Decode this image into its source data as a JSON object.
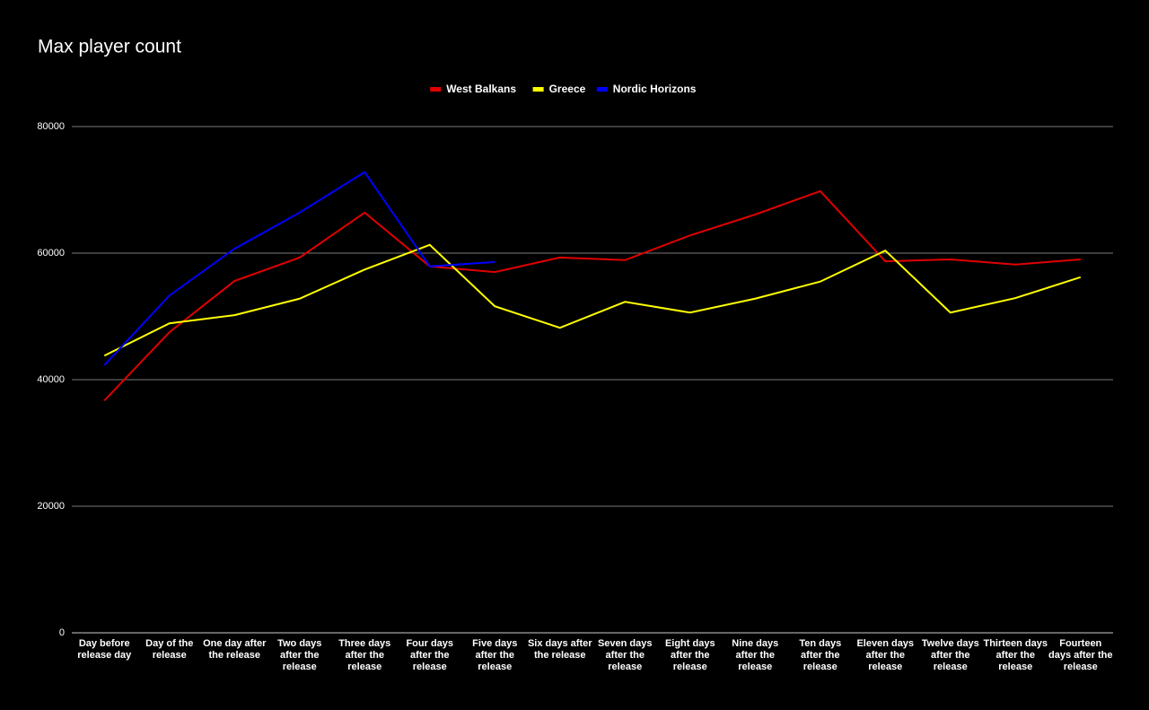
{
  "chart_data": {
    "type": "line",
    "title": "Max player count",
    "categories": [
      "Day before release day",
      "Day of the release",
      "One day after the release",
      "Two days after the release",
      "Three days after the release",
      "Four days after the release",
      "Five days after the release",
      "Six days after the release",
      "Seven days after the release",
      "Eight days after the release",
      "Nine days after the release",
      "Ten days after the release",
      "Eleven days after the release",
      "Twelve days after the release",
      "Thirteen days after the release",
      "Fourteen days after the release"
    ],
    "series": [
      {
        "name": "West Balkans",
        "color": "#e00000",
        "values": [
          36700,
          47500,
          55600,
          59300,
          66400,
          57900,
          57000,
          59300,
          58900,
          62800,
          66100,
          69800,
          58700,
          59000,
          58200,
          59000
        ]
      },
      {
        "name": "Greece",
        "color": "#ffff00",
        "values": [
          43800,
          48900,
          50200,
          52800,
          57400,
          61300,
          51600,
          48200,
          52300,
          50600,
          52800,
          55500,
          60400,
          50600,
          52900,
          56200
        ]
      },
      {
        "name": "Nordic Horizons",
        "color": "#0000ff",
        "values": [
          42300,
          53300,
          60700,
          66400,
          72800,
          57900,
          58600,
          null,
          null,
          null,
          null,
          null,
          null,
          null,
          null,
          null
        ]
      }
    ],
    "ylim": [
      0,
      80000
    ],
    "yticks": [
      0,
      20000,
      40000,
      60000,
      80000
    ],
    "grid": true,
    "legend": "top"
  }
}
